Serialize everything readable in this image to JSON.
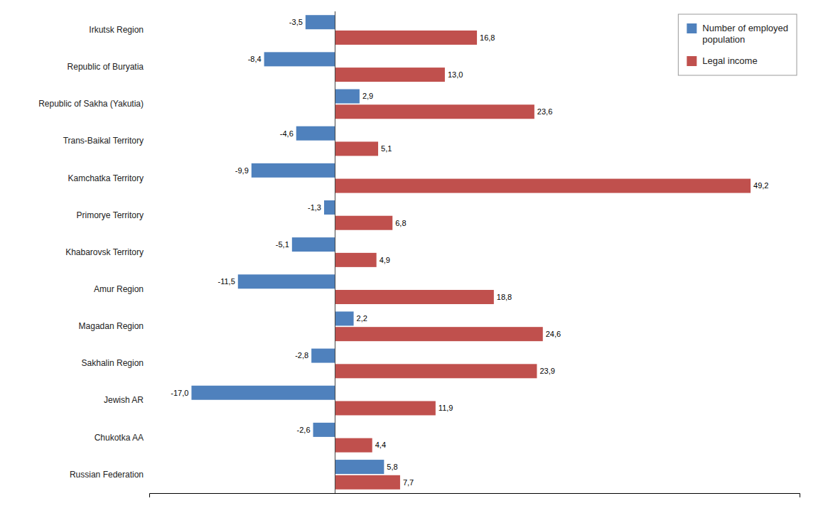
{
  "chart_data": {
    "type": "bar",
    "orientation": "horizontal",
    "categories": [
      "Russian Federation",
      "Chukotka AA",
      "Jewish AR",
      "Sakhalin Region",
      "Magadan Region",
      "Amur Region",
      "Khabarovsk Territory",
      "Primorye Territory",
      "Kamchatka Territory",
      "Trans-Baikal Territory",
      "Republic of Sakha (Yakutia)",
      "Republic of Buryatia",
      "Irkutsk Region"
    ],
    "series": [
      {
        "name": "Number of employed\npopulation",
        "color": "#4f81bd",
        "values": [
          5.8,
          -2.6,
          -17.0,
          -2.8,
          2.2,
          -11.5,
          -5.1,
          -1.3,
          -9.9,
          -4.6,
          2.9,
          -8.4,
          -3.5
        ],
        "value_labels": [
          "5,8",
          "-2,6",
          "-17,0",
          "-2,8",
          "2,2",
          "-11,5",
          "-5,1",
          "-1,3",
          "-9,9",
          "-4,6",
          "2,9",
          "-8,4",
          "-3,5"
        ]
      },
      {
        "name": "Legal income",
        "color": "#c0504d",
        "values": [
          7.7,
          4.4,
          11.9,
          23.9,
          24.6,
          18.8,
          4.9,
          6.8,
          49.2,
          5.1,
          23.6,
          13.0,
          16.8
        ],
        "value_labels": [
          "7,7",
          "4,4",
          "11,9",
          "23,9",
          "24,6",
          "18,8",
          "4,9",
          "6,8",
          "49,2",
          "5,1",
          "23,6",
          "13,0",
          "16,8"
        ]
      }
    ],
    "xlim": [
      -22,
      55
    ],
    "xticks": [],
    "tick_labels": "y",
    "data_labels": true,
    "grid": false,
    "legend": "upper right"
  }
}
